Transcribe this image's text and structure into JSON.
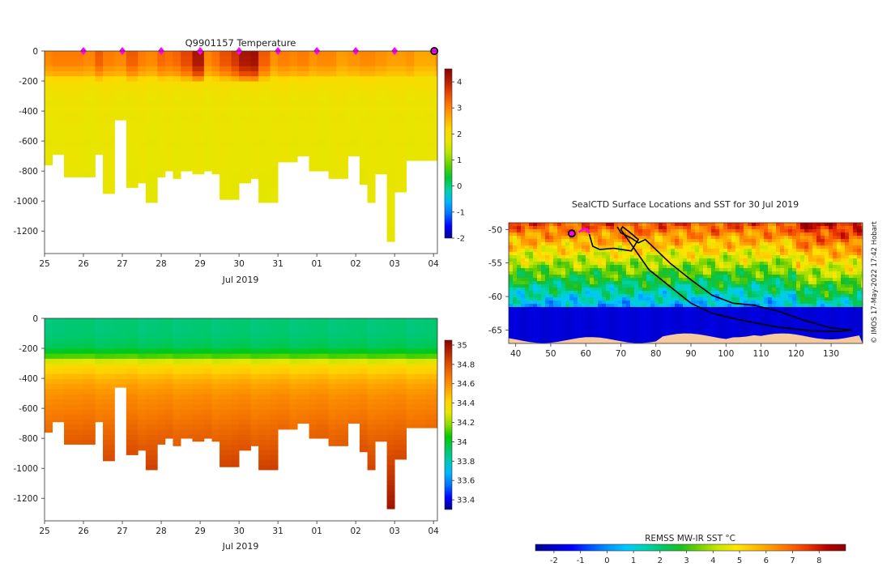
{
  "palettes": {
    "temperature": [
      "#00008f",
      "#0000ff",
      "#0070ff",
      "#00b4ff",
      "#00d2a0",
      "#00c832",
      "#5ad200",
      "#b4e600",
      "#e6e600",
      "#ffd700",
      "#ffaa00",
      "#ff7800",
      "#e64600",
      "#b41e00",
      "#8b0000"
    ],
    "salinity": [
      "#00008f",
      "#0000ff",
      "#0070ff",
      "#00b4ff",
      "#00c8b4",
      "#00c864",
      "#00c800",
      "#8cdc00",
      "#e6e600",
      "#ffd200",
      "#ffa000",
      "#f57800",
      "#dc5000",
      "#b42800",
      "#8b0000"
    ],
    "sst": [
      "#00008f",
      "#0000c8",
      "#0000ff",
      "#0050ff",
      "#0096ff",
      "#00c8ff",
      "#00d2b4",
      "#00c864",
      "#1ebe1e",
      "#78d200",
      "#c8e600",
      "#ffe600",
      "#ffbe00",
      "#ff9600",
      "#ff6400",
      "#e63200",
      "#b40000",
      "#8b0000"
    ],
    "land": "#f5c9a0",
    "track": "#000000",
    "marker": "#ff00ff"
  },
  "chart_data": [
    {
      "name": "temperature-section",
      "type": "heatmap",
      "title": "Q9901157  Temperature",
      "xlabel": "Jul 2019",
      "ylabel": "",
      "x_tick_labels": [
        "25",
        "26",
        "27",
        "28",
        "29",
        "30",
        "31",
        "01",
        "02",
        "03",
        "04"
      ],
      "x_tick_positions_days": [
        0,
        1,
        2,
        3,
        4,
        5,
        6,
        7,
        8,
        9,
        10
      ],
      "xlim_days": [
        0,
        10.1
      ],
      "ylim": [
        -1350,
        0
      ],
      "y_ticks": [
        0,
        -200,
        -400,
        -600,
        -800,
        -1000,
        -1200
      ],
      "y_tick_labels": [
        "0",
        "-200",
        "-400",
        "-600",
        "-800",
        "-1000",
        "-1200"
      ],
      "colorbar": {
        "min": -2,
        "max": 4.5,
        "ticks": [
          4,
          3,
          2,
          1,
          0,
          -1,
          -2
        ],
        "tick_labels": [
          "4",
          "3",
          "2",
          "1",
          "0",
          "-1",
          "-2"
        ]
      },
      "profile_start_days": [
        0,
        0.2,
        0.5,
        1,
        1.3,
        1.5,
        1.8,
        2.1,
        2.4,
        2.6,
        2.9,
        3.1,
        3.3,
        3.5,
        3.8,
        4.1,
        4.3,
        4.5,
        4.8,
        5,
        5.3,
        5.5,
        5.8,
        6,
        6.3,
        6.5,
        6.8,
        7,
        7.3,
        7.5,
        7.8,
        8.1,
        8.3,
        8.5,
        8.8,
        9,
        9.3,
        9.5,
        9.8,
        10.05
      ],
      "profile_max_depths": [
        760,
        690,
        840,
        840,
        690,
        950,
        460,
        910,
        880,
        1010,
        840,
        800,
        850,
        800,
        820,
        800,
        820,
        990,
        990,
        880,
        850,
        1010,
        1010,
        740,
        740,
        700,
        800,
        800,
        850,
        850,
        700,
        890,
        1010,
        820,
        1270,
        940,
        730,
        730,
        730,
        730
      ],
      "profile_surface_values": [
        3.0,
        3.1,
        3.1,
        3.0,
        3.4,
        3.1,
        3.0,
        3.4,
        3.1,
        3.0,
        3.3,
        3.2,
        3.3,
        3.6,
        4.2,
        3.0,
        3.2,
        3.5,
        3.8,
        4.2,
        4.3,
        3.4,
        2.9,
        3.1,
        3.0,
        3.1,
        2.9,
        3.0,
        3.0,
        2.8,
        2.9,
        3.0,
        3.0,
        2.9,
        2.8,
        2.8,
        2.9,
        2.7,
        2.7,
        3.0
      ],
      "vertical_profile": {
        "depths": [
          0,
          100,
          150,
          200,
          300,
          500,
          800,
          1300
        ],
        "values": [
          1.0,
          0.97,
          0.82,
          0.55,
          0.45,
          0.42,
          0.4,
          0.38
        ]
      },
      "surface_marker_days": [
        1,
        2,
        3,
        4,
        5,
        6,
        7,
        8,
        9
      ],
      "current_position_day": 10.02
    },
    {
      "name": "salinity-section",
      "type": "heatmap",
      "title": "",
      "xlabel": "Jul 2019",
      "ylabel": "",
      "x_tick_labels": [
        "25",
        "26",
        "27",
        "28",
        "29",
        "30",
        "31",
        "01",
        "02",
        "03",
        "04"
      ],
      "x_tick_positions_days": [
        0,
        1,
        2,
        3,
        4,
        5,
        6,
        7,
        8,
        9,
        10
      ],
      "xlim_days": [
        0,
        10.1
      ],
      "ylim": [
        -1350,
        0
      ],
      "y_ticks": [
        0,
        -200,
        -400,
        -600,
        -800,
        -1000,
        -1200
      ],
      "y_tick_labels": [
        "0",
        "-200",
        "-400",
        "-600",
        "-800",
        "-1000",
        "-1200"
      ],
      "colorbar": {
        "min": 33.3,
        "max": 35.05,
        "ticks": [
          35,
          34.8,
          34.6,
          34.4,
          34.2,
          34,
          33.8,
          33.6,
          33.4
        ],
        "tick_labels": [
          "35",
          "34.8",
          "34.6",
          "34.4",
          "34.2",
          "34",
          "33.8",
          "33.6",
          "33.4"
        ]
      },
      "profile_max_depths": [
        760,
        690,
        840,
        840,
        690,
        950,
        460,
        910,
        880,
        1010,
        840,
        800,
        850,
        800,
        820,
        800,
        820,
        990,
        990,
        880,
        850,
        1010,
        1010,
        740,
        740,
        700,
        800,
        800,
        850,
        850,
        700,
        890,
        1010,
        820,
        1270,
        940,
        730,
        730,
        730,
        730
      ],
      "vertical_profile": {
        "depths": [
          0,
          100,
          200,
          250,
          300,
          400,
          500,
          700,
          900,
          1100,
          1300
        ],
        "values": [
          33.9,
          33.9,
          33.95,
          34.1,
          34.35,
          34.5,
          34.6,
          34.7,
          34.8,
          34.9,
          35.0
        ]
      }
    },
    {
      "name": "surface-location-map",
      "type": "heatmap",
      "title": "SealCTD Surface Locations and SST for 30 Jul 2019",
      "xlabel": "",
      "ylabel": "",
      "xlim": [
        38,
        139
      ],
      "ylim": [
        -67,
        -49
      ],
      "x_ticks": [
        40,
        50,
        60,
        70,
        80,
        90,
        100,
        110,
        120,
        130
      ],
      "x_tick_labels": [
        "40",
        "50",
        "60",
        "70",
        "80",
        "90",
        "100",
        "110",
        "120",
        "130"
      ],
      "y_ticks": [
        -50,
        -55,
        -60,
        -65
      ],
      "y_tick_labels": [
        "-50",
        "-55",
        "-60",
        "-65"
      ],
      "track_lon": [
        69,
        70,
        73,
        75,
        77,
        80,
        84,
        90,
        96,
        102,
        108,
        115,
        122,
        130,
        136,
        132,
        124,
        114,
        104,
        96,
        90,
        84,
        78,
        74,
        72,
        70,
        70.5,
        72,
        75,
        73,
        68,
        64,
        62,
        61
      ],
      "track_lat": [
        -49.6,
        -50.5,
        -51.3,
        -52,
        -51.5,
        -53,
        -55,
        -57.5,
        -59.8,
        -61,
        -61.3,
        -62.2,
        -63.5,
        -64.7,
        -65,
        -65.2,
        -65.1,
        -64.5,
        -63.5,
        -62.5,
        -61,
        -58.5,
        -56,
        -53,
        -51.5,
        -50,
        -49.6,
        -50.2,
        -51.5,
        -53.2,
        -52.8,
        -53,
        -52.5,
        -50.7
      ],
      "start_position": {
        "lon": 56,
        "lat": -50.6
      },
      "recent_segment_lon": [
        58,
        59.5,
        60.5,
        61
      ],
      "recent_segment_lat": [
        -50.4,
        -49.9,
        -50.0,
        -50.6
      ],
      "colorbar": {
        "label": "REMSS MW-IR SST °C",
        "min": -2.7,
        "max": 9.0,
        "ticks": [
          -2,
          -1,
          0,
          1,
          2,
          3,
          4,
          5,
          6,
          7,
          8
        ],
        "tick_labels": [
          "-2",
          "-1",
          "0",
          "1",
          "2",
          "3",
          "4",
          "5",
          "6",
          "7",
          "8"
        ]
      }
    }
  ],
  "credit": "© IMOS 17-May-2022 17:42 Hobart"
}
